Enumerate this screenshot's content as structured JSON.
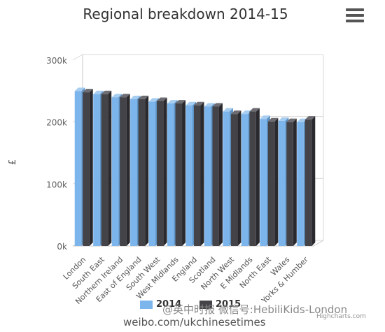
{
  "title": "Regional breakdown 2014-15",
  "credits": "Highcharts.com",
  "watermark": {
    "weibo_handle": "@英中时报 微信号:HebiliKids-London",
    "weibo_url": "weibo.com/ukchinesetimes"
  },
  "colors": {
    "series_2014": "#7cb5ec",
    "series_2015": "#434348"
  },
  "chart_data": {
    "type": "bar",
    "ylabel": "£",
    "ylim": [
      0,
      300000
    ],
    "yticks": [
      {
        "value": 0,
        "label": "0k"
      },
      {
        "value": 100000,
        "label": "100k"
      },
      {
        "value": 200000,
        "label": "200k"
      },
      {
        "value": 300000,
        "label": "300k"
      }
    ],
    "grid": true,
    "legend": "bottom",
    "categories": [
      "London",
      "South East",
      "Northern Ireland",
      "East of England",
      "South West",
      "West Midlands",
      "England",
      "Scotland",
      "North West",
      "E Midlands",
      "North East",
      "Wales",
      "Yorks & Humber"
    ],
    "series": [
      {
        "name": "2014",
        "values": [
          250000,
          245000,
          240000,
          237000,
          233000,
          230000,
          227000,
          225000,
          217000,
          213000,
          205000,
          202000,
          200000
        ]
      },
      {
        "name": "2015",
        "values": [
          248000,
          245000,
          240000,
          237000,
          234000,
          230000,
          227000,
          225000,
          213000,
          217000,
          201000,
          200000,
          204000
        ]
      }
    ]
  }
}
